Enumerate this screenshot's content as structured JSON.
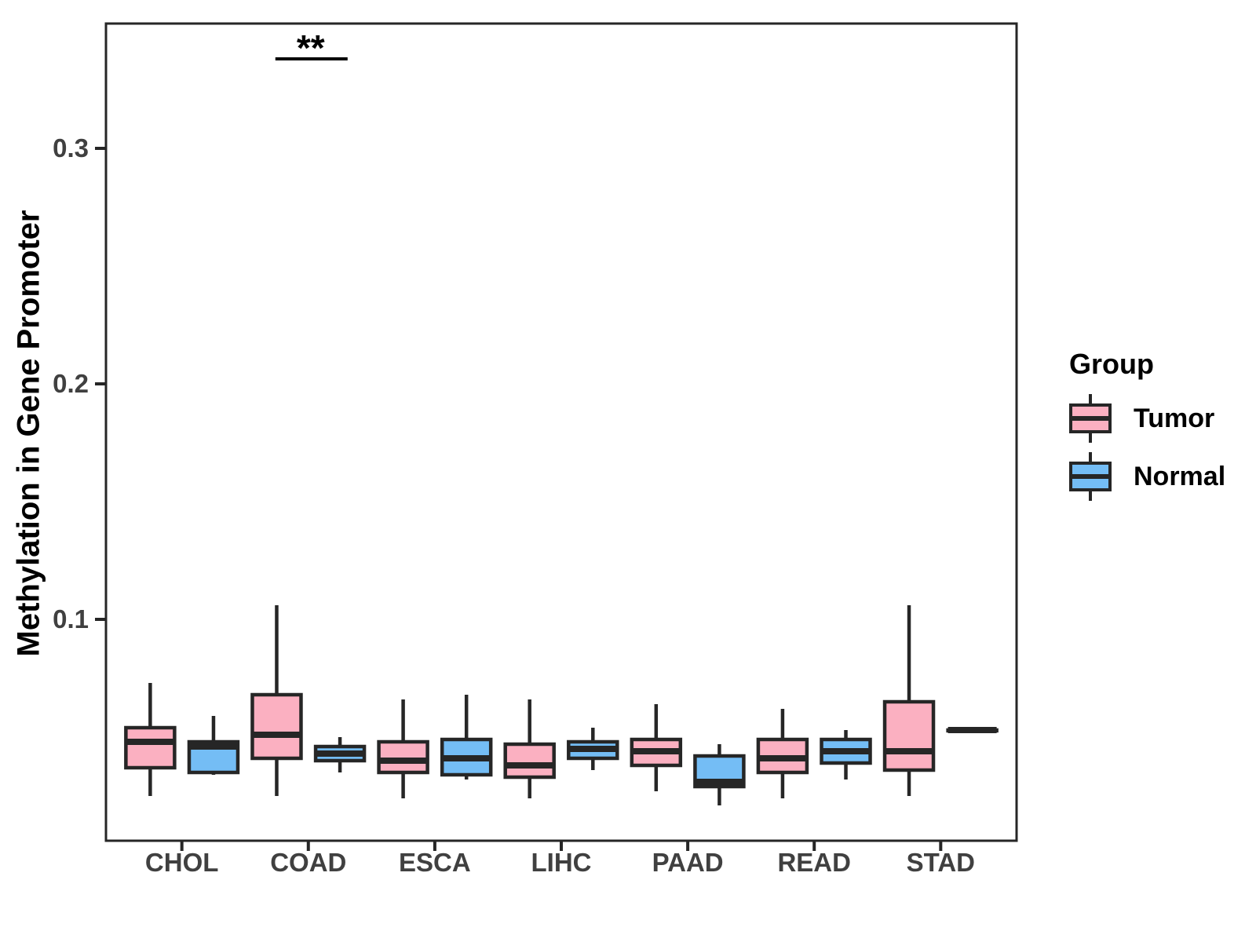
{
  "chart_data": {
    "type": "boxplot",
    "title": "",
    "xlabel": "",
    "ylabel": "Methylation in Gene Promoter",
    "categories": [
      "CHOL",
      "COAD",
      "ESCA",
      "LIHC",
      "PAAD",
      "READ",
      "STAD"
    ],
    "ylim": [
      0.006,
      0.353
    ],
    "yticks": {
      "values": [
        0.1,
        0.2,
        0.3
      ],
      "labels": [
        "0.1",
        "0.2",
        "0.3"
      ]
    },
    "grid": false,
    "legend_position": "right",
    "groups": [
      {
        "name": "Tumor",
        "color": "#FBB0C1"
      },
      {
        "name": "Normal",
        "color": "#74BDF5"
      }
    ],
    "series": [
      {
        "name": "Tumor",
        "boxes": [
          {
            "category": "CHOL",
            "min": 0.025,
            "q1": 0.037,
            "median": 0.048,
            "q3": 0.054,
            "max": 0.073
          },
          {
            "category": "COAD",
            "min": 0.025,
            "q1": 0.041,
            "median": 0.051,
            "q3": 0.068,
            "max": 0.106
          },
          {
            "category": "ESCA",
            "min": 0.024,
            "q1": 0.035,
            "median": 0.04,
            "q3": 0.048,
            "max": 0.066
          },
          {
            "category": "LIHC",
            "min": 0.024,
            "q1": 0.033,
            "median": 0.038,
            "q3": 0.047,
            "max": 0.066
          },
          {
            "category": "PAAD",
            "min": 0.027,
            "q1": 0.038,
            "median": 0.044,
            "q3": 0.049,
            "max": 0.064
          },
          {
            "category": "READ",
            "min": 0.024,
            "q1": 0.035,
            "median": 0.041,
            "q3": 0.049,
            "max": 0.062
          },
          {
            "category": "STAD",
            "min": 0.025,
            "q1": 0.036,
            "median": 0.044,
            "q3": 0.065,
            "max": 0.106
          }
        ]
      },
      {
        "name": "Normal",
        "boxes": [
          {
            "category": "CHOL",
            "min": 0.034,
            "q1": 0.035,
            "median": 0.046,
            "q3": 0.048,
            "max": 0.059
          },
          {
            "category": "COAD",
            "min": 0.035,
            "q1": 0.04,
            "median": 0.043,
            "q3": 0.046,
            "max": 0.05
          },
          {
            "category": "ESCA",
            "min": 0.032,
            "q1": 0.034,
            "median": 0.041,
            "q3": 0.049,
            "max": 0.068
          },
          {
            "category": "LIHC",
            "min": 0.036,
            "q1": 0.041,
            "median": 0.045,
            "q3": 0.048,
            "max": 0.054
          },
          {
            "category": "PAAD",
            "min": 0.021,
            "q1": 0.029,
            "median": 0.031,
            "q3": 0.042,
            "max": 0.047
          },
          {
            "category": "READ",
            "min": 0.032,
            "q1": 0.039,
            "median": 0.044,
            "q3": 0.049,
            "max": 0.053
          },
          {
            "category": "STAD",
            "min": 0.053,
            "q1": 0.053,
            "median": 0.053,
            "q3": 0.053,
            "max": 0.053
          }
        ]
      }
    ],
    "annotation": {
      "label": "**",
      "category": "COAD",
      "y": 0.338
    }
  },
  "legend": {
    "title": "Group",
    "items": [
      {
        "label": "Tumor"
      },
      {
        "label": "Normal"
      }
    ]
  },
  "style": {
    "box_stroke": "#262626",
    "tick_label_color": "#404040",
    "panel_border": "#262626"
  }
}
